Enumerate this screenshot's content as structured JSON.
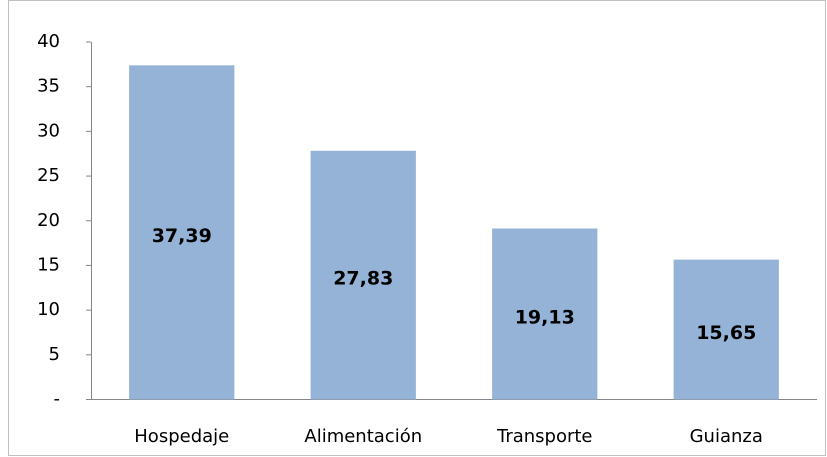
{
  "chart_data": {
    "type": "bar",
    "categories": [
      "Hospedaje",
      "Alimentación",
      "Transporte",
      "Guianza"
    ],
    "values": [
      37.39,
      27.83,
      19.13,
      15.65
    ],
    "value_labels": [
      "37,39",
      "27,83",
      "19,13",
      "15,65"
    ],
    "color": "#95b3d7",
    "ylim": [
      0,
      40
    ],
    "yticks": [
      {
        "value": 0,
        "label": "-"
      },
      5,
      10,
      15,
      20,
      25,
      30,
      35,
      40
    ],
    "grid": false
  }
}
